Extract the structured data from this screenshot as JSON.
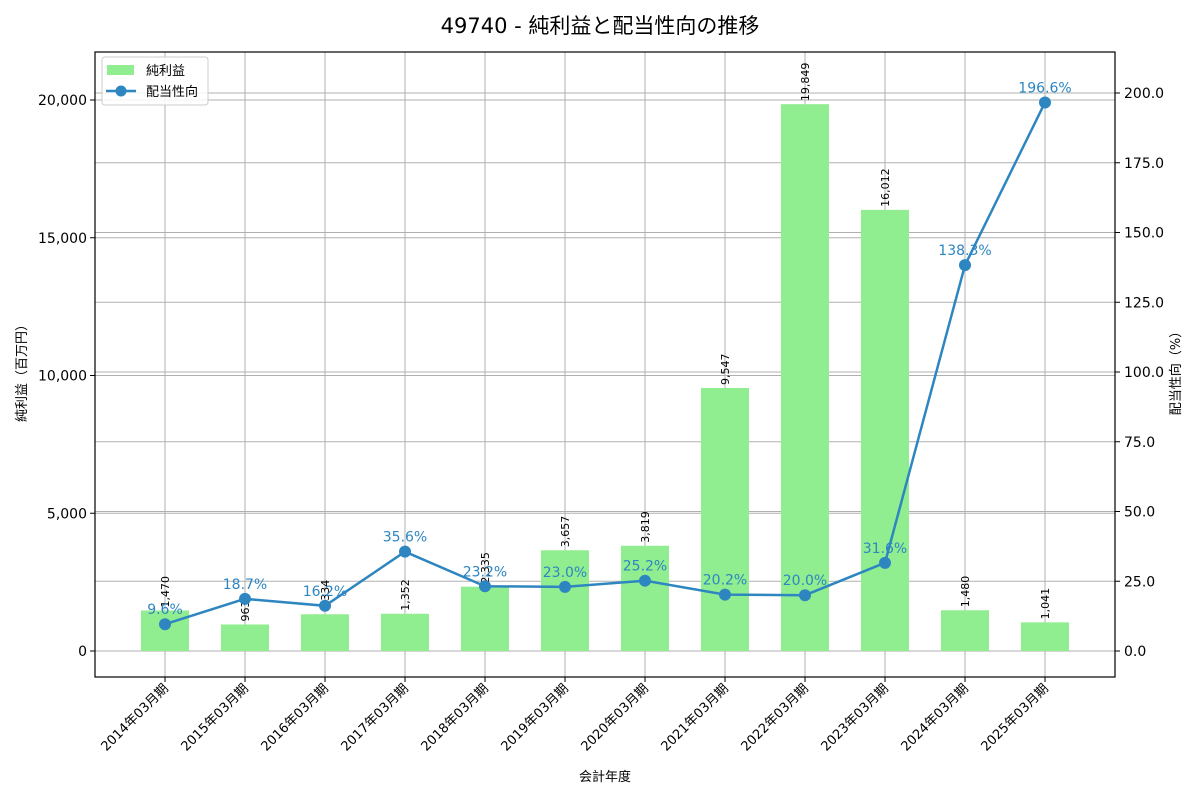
{
  "chart_data": {
    "type": "bar+line",
    "title": "49740 - 純利益と配当性向の推移",
    "xlabel": "会計年度",
    "ylabel": "純利益（百万円）",
    "y2label": "配当性向（%）",
    "categories": [
      "2014年03月期",
      "2015年03月期",
      "2016年03月期",
      "2017年03月期",
      "2018年03月期",
      "2019年03月期",
      "2020年03月期",
      "2021年03月期",
      "2022年03月期",
      "2023年03月期",
      "2024年03月期",
      "2025年03月期"
    ],
    "series": [
      {
        "name": "純利益",
        "type": "bar",
        "axis": "left",
        "color": "#90ee90",
        "values": [
          1470,
          963,
          1334,
          1352,
          2335,
          3657,
          3819,
          9547,
          19849,
          16012,
          1480,
          1041
        ],
        "labels": [
          "1,470",
          "963",
          "1,334",
          "1,352",
          "2,335",
          "3,657",
          "3,819",
          "9,547",
          "19,849",
          "16,012",
          "1,480",
          "1,041"
        ]
      },
      {
        "name": "配当性向",
        "type": "line",
        "axis": "right",
        "color": "#2e86c1",
        "values": [
          9.6,
          18.7,
          16.2,
          35.6,
          23.2,
          23.0,
          25.2,
          20.2,
          20.0,
          31.6,
          138.3,
          196.6
        ],
        "labels": [
          "9.6%",
          "18.7%",
          "16.2%",
          "35.6%",
          "23.2%",
          "23.0%",
          "25.2%",
          "20.2%",
          "20.0%",
          "31.6%",
          "138.3%",
          "196.6%"
        ]
      }
    ],
    "ylim": [
      -950,
      21800
    ],
    "y2lim": [
      -9.3,
      215
    ],
    "yticks": [
      0,
      5000,
      10000,
      15000,
      20000
    ],
    "ytick_labels": [
      "0",
      "5,000",
      "10,000",
      "15,000",
      "20,000"
    ],
    "y2ticks": [
      0,
      25,
      50,
      75,
      100,
      125,
      150,
      175,
      200
    ],
    "y2tick_labels": [
      "0.0",
      "25.0",
      "50.0",
      "75.0",
      "100.0",
      "125.0",
      "150.0",
      "175.0",
      "200.0"
    ],
    "grid": true,
    "legend_position": "upper left"
  }
}
